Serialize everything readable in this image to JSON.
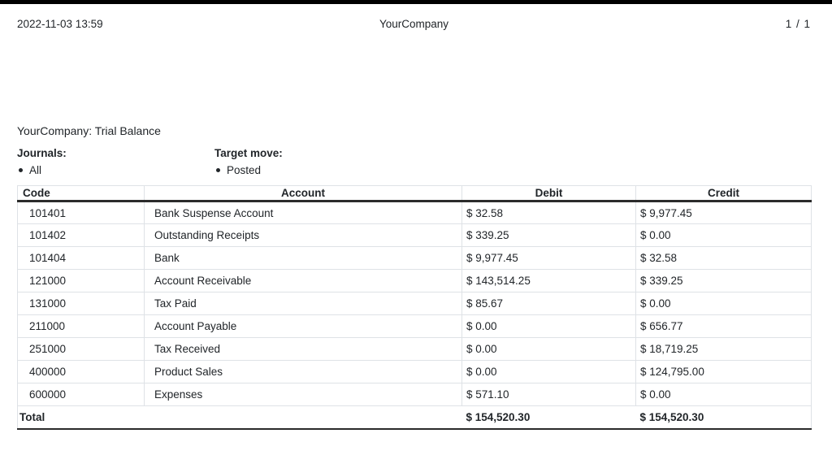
{
  "page_header": {
    "datetime": "2022-11-03 13:59",
    "company": "YourCompany",
    "page_indicator": "1 / 1"
  },
  "report": {
    "title": "YourCompany: Trial Balance",
    "filters": [
      {
        "label": "Journals:",
        "values": [
          "All"
        ]
      },
      {
        "label": "Target move:",
        "values": [
          "Posted"
        ]
      }
    ]
  },
  "table": {
    "columns": [
      "Code",
      "Account",
      "Debit",
      "Credit"
    ],
    "rows": [
      {
        "code": "101401",
        "account": "Bank Suspense Account",
        "debit": "$ 32.58",
        "credit": "$ 9,977.45"
      },
      {
        "code": "101402",
        "account": "Outstanding Receipts",
        "debit": "$ 339.25",
        "credit": "$ 0.00"
      },
      {
        "code": "101404",
        "account": "Bank",
        "debit": "$ 9,977.45",
        "credit": "$ 32.58"
      },
      {
        "code": "121000",
        "account": "Account Receivable",
        "debit": "$ 143,514.25",
        "credit": "$ 339.25"
      },
      {
        "code": "131000",
        "account": "Tax Paid",
        "debit": "$ 85.67",
        "credit": "$ 0.00"
      },
      {
        "code": "211000",
        "account": "Account Payable",
        "debit": "$ 0.00",
        "credit": "$ 656.77"
      },
      {
        "code": "251000",
        "account": "Tax Received",
        "debit": "$ 0.00",
        "credit": "$ 18,719.25"
      },
      {
        "code": "400000",
        "account": "Product Sales",
        "debit": "$ 0.00",
        "credit": "$ 124,795.00"
      },
      {
        "code": "600000",
        "account": "Expenses",
        "debit": "$ 571.10",
        "credit": "$ 0.00"
      }
    ],
    "total": {
      "label": "Total",
      "debit": "$ 154,520.30",
      "credit": "$ 154,520.30"
    }
  }
}
